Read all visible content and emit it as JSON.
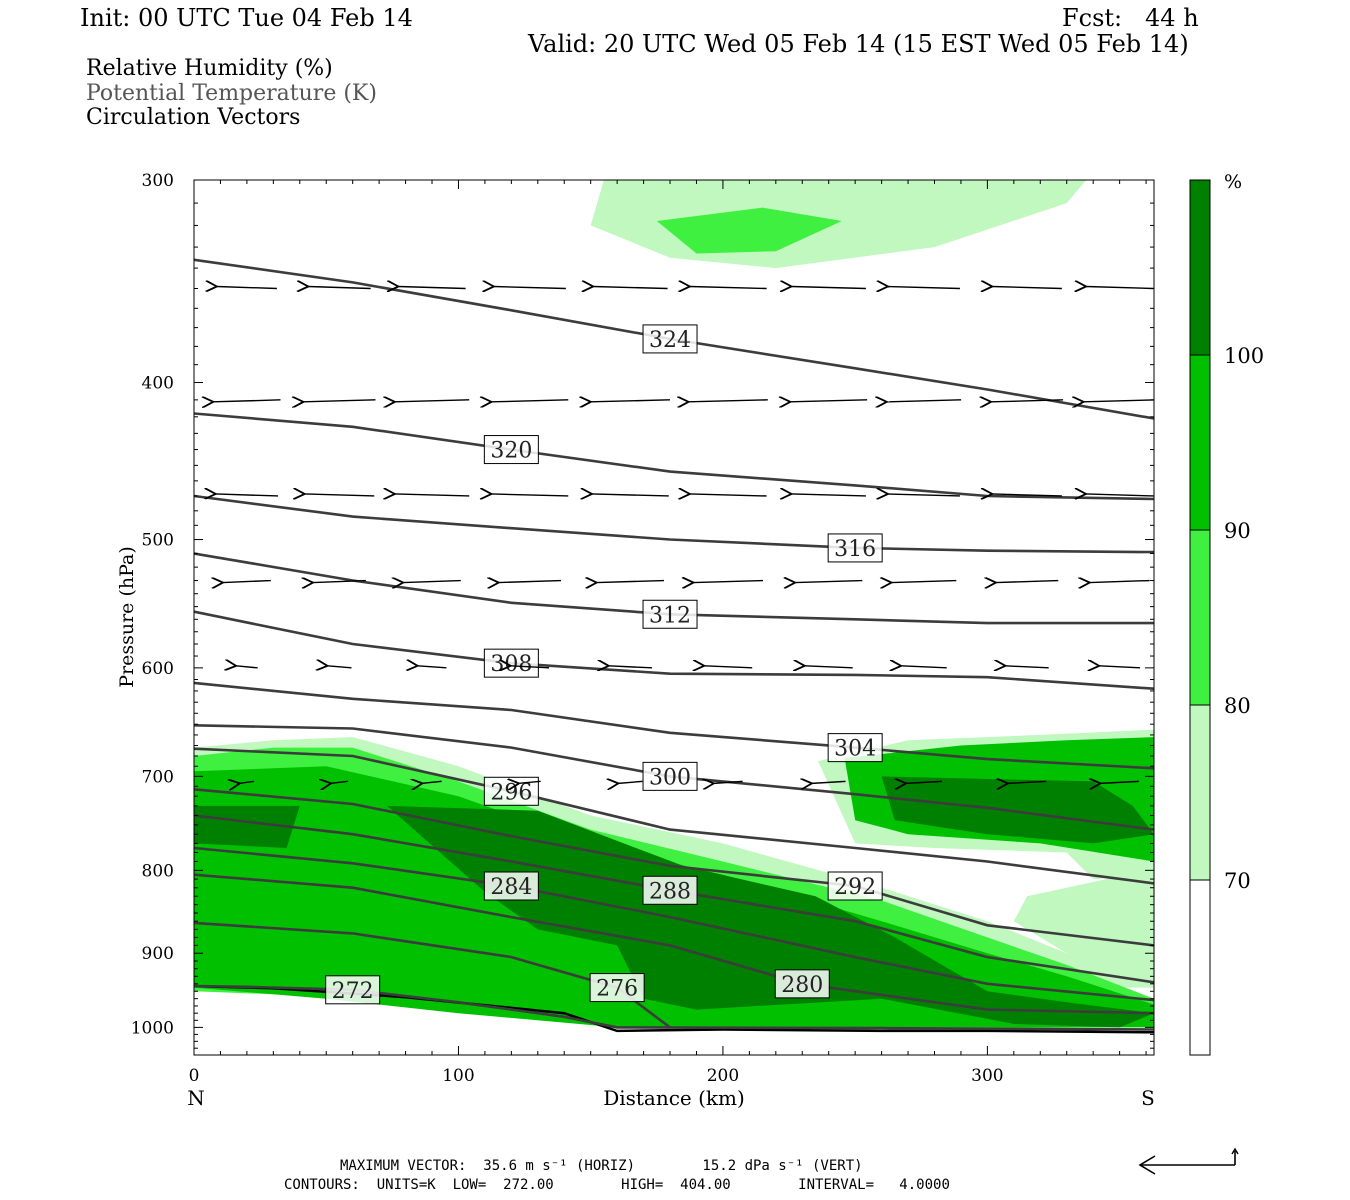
{
  "header": {
    "init": "Init: 00 UTC Tue 04 Feb 14",
    "fcst": "Fcst:   44 h",
    "valid": "Valid: 20 UTC Wed 05 Feb 14 (15 EST Wed 05 Feb 14)"
  },
  "legend": {
    "line1": "Relative Humidity (%)",
    "line2": "Potential Temperature (K)",
    "line3": "Circulation Vectors"
  },
  "footer": {
    "line1": "MAXIMUM VECTOR:  35.6 m s⁻¹ (HORIZ)        15.2 dPa s⁻¹ (VERT)",
    "line2": "CONTOURS:  UNITS=K  LOW=  272.00        HIGH=  404.00        INTERVAL=   4.0000"
  },
  "colors": {
    "rh70_80": "#c0f8c0",
    "rh80_90": "#40f040",
    "rh90_100": "#00c000",
    "rh100": "#008000",
    "contour": "#3c3c3c"
  },
  "chart_data": {
    "type": "cross-section",
    "xlabel": "Distance (km)",
    "ylabel": "Pressure (hPa)",
    "xlim": [
      0,
      363
    ],
    "ylim": [
      1040,
      300
    ],
    "y_log": true,
    "x_ticks": [
      "0",
      "100",
      "200",
      "300"
    ],
    "x_tick_values": [
      0,
      100,
      200,
      300
    ],
    "y_ticks": [
      "300",
      "400",
      "500",
      "600",
      "700",
      "800",
      "900",
      "1000"
    ],
    "y_tick_values": [
      300,
      400,
      500,
      600,
      700,
      800,
      900,
      1000
    ],
    "end_labels": {
      "left": "N",
      "right": "S"
    },
    "colorbar": {
      "unit": "%",
      "labels": [
        "100",
        "90",
        "80",
        "70"
      ],
      "label_values": [
        100,
        90,
        80,
        70
      ]
    },
    "theta_contours": [
      {
        "label": "272",
        "points": [
          [
            0,
            943
          ],
          [
            20,
            944
          ],
          [
            60,
            948
          ],
          [
            100,
            965
          ],
          [
            140,
            985
          ],
          [
            160,
            1000
          ],
          [
            260,
            1001
          ],
          [
            363,
            1003
          ]
        ]
      },
      {
        "label": "276",
        "points": [
          [
            0,
            862
          ],
          [
            60,
            875
          ],
          [
            120,
            905
          ],
          [
            160,
            945
          ],
          [
            180,
            1000
          ]
        ]
      },
      {
        "label": "280",
        "points": [
          [
            0,
            805
          ],
          [
            60,
            820
          ],
          [
            120,
            855
          ],
          [
            180,
            890
          ],
          [
            230,
            940
          ],
          [
            300,
            975
          ],
          [
            363,
            980
          ]
        ]
      },
      {
        "label": "284",
        "points": [
          [
            0,
            775
          ],
          [
            60,
            792
          ],
          [
            120,
            818
          ],
          [
            180,
            855
          ],
          [
            250,
            905
          ],
          [
            300,
            940
          ],
          [
            363,
            962
          ]
        ]
      },
      {
        "label": "288",
        "points": [
          [
            0,
            740
          ],
          [
            60,
            760
          ],
          [
            120,
            790
          ],
          [
            180,
            823
          ],
          [
            250,
            860
          ],
          [
            300,
            905
          ],
          [
            363,
            938
          ]
        ]
      },
      {
        "label": "292",
        "points": [
          [
            0,
            713
          ],
          [
            60,
            728
          ],
          [
            120,
            762
          ],
          [
            180,
            795
          ],
          [
            250,
            818
          ],
          [
            300,
            865
          ],
          [
            363,
            890
          ]
        ]
      },
      {
        "label": "296",
        "points": [
          [
            0,
            673
          ],
          [
            60,
            680
          ],
          [
            120,
            715
          ],
          [
            180,
            755
          ],
          [
            250,
            775
          ],
          [
            300,
            790
          ],
          [
            363,
            815
          ]
        ]
      },
      {
        "label": "300",
        "points": [
          [
            0,
            651
          ],
          [
            60,
            654
          ],
          [
            120,
            672
          ],
          [
            180,
            700
          ],
          [
            250,
            718
          ],
          [
            300,
            732
          ],
          [
            363,
            755
          ]
        ]
      },
      {
        "label": "304",
        "points": [
          [
            0,
            613
          ],
          [
            60,
            627
          ],
          [
            120,
            637
          ],
          [
            180,
            658
          ],
          [
            250,
            672
          ],
          [
            300,
            683
          ],
          [
            363,
            692
          ]
        ]
      },
      {
        "label": "308",
        "points": [
          [
            0,
            554
          ],
          [
            60,
            580
          ],
          [
            120,
            596
          ],
          [
            180,
            605
          ],
          [
            250,
            606
          ],
          [
            300,
            608
          ],
          [
            363,
            618
          ]
        ]
      },
      {
        "label": "312",
        "points": [
          [
            0,
            510
          ],
          [
            60,
            530
          ],
          [
            120,
            547
          ],
          [
            180,
            556
          ],
          [
            250,
            560
          ],
          [
            300,
            563
          ],
          [
            363,
            563
          ]
        ]
      },
      {
        "label": "316",
        "points": [
          [
            0,
            470
          ],
          [
            60,
            484
          ],
          [
            120,
            492
          ],
          [
            180,
            500
          ],
          [
            250,
            506
          ],
          [
            300,
            508
          ],
          [
            363,
            509
          ]
        ]
      },
      {
        "label": "320",
        "points": [
          [
            0,
            418
          ],
          [
            60,
            426
          ],
          [
            120,
            440
          ],
          [
            180,
            454
          ],
          [
            250,
            463
          ],
          [
            300,
            470
          ],
          [
            363,
            472
          ]
        ]
      },
      {
        "label": "324",
        "points": [
          [
            0,
            336
          ],
          [
            60,
            347
          ],
          [
            120,
            361
          ],
          [
            180,
            376
          ],
          [
            250,
            392
          ],
          [
            300,
            404
          ],
          [
            363,
            421
          ]
        ]
      }
    ],
    "rh_regions": [
      {
        "level": 70,
        "points": [
          [
            0,
            672
          ],
          [
            30,
            665
          ],
          [
            60,
            662
          ],
          [
            100,
            690
          ],
          [
            150,
            740
          ],
          [
            200,
            770
          ],
          [
            260,
            820
          ],
          [
            300,
            860
          ],
          [
            330,
            900
          ],
          [
            363,
            935
          ],
          [
            363,
            945
          ],
          [
            0,
            945
          ]
        ]
      },
      {
        "level": 80,
        "points": [
          [
            0,
            680
          ],
          [
            30,
            672
          ],
          [
            60,
            672
          ],
          [
            100,
            705
          ],
          [
            150,
            755
          ],
          [
            200,
            790
          ],
          [
            260,
            835
          ],
          [
            300,
            880
          ],
          [
            330,
            915
          ],
          [
            363,
            960
          ],
          [
            363,
            1000
          ],
          [
            0,
            950
          ]
        ]
      },
      {
        "level": 90,
        "points": [
          [
            0,
            695
          ],
          [
            50,
            690
          ],
          [
            100,
            720
          ],
          [
            150,
            770
          ],
          [
            200,
            805
          ],
          [
            260,
            860
          ],
          [
            300,
            900
          ],
          [
            330,
            930
          ],
          [
            363,
            968
          ],
          [
            363,
            1000
          ],
          [
            160,
            1000
          ],
          [
            100,
            980
          ],
          [
            50,
            960
          ],
          [
            0,
            945
          ]
        ]
      },
      {
        "level": 100,
        "points": [
          [
            0,
            730
          ],
          [
            40,
            730
          ],
          [
            35,
            775
          ],
          [
            0,
            770
          ]
        ]
      },
      {
        "level": 100,
        "points": [
          [
            73,
            730
          ],
          [
            130,
            735
          ],
          [
            185,
            795
          ],
          [
            235,
            830
          ],
          [
            265,
            880
          ],
          [
            300,
            950
          ],
          [
            330,
            965
          ],
          [
            363,
            980
          ],
          [
            350,
            1000
          ],
          [
            310,
            995
          ],
          [
            260,
            960
          ],
          [
            190,
            975
          ],
          [
            170,
            960
          ],
          [
            160,
            890
          ],
          [
            130,
            870
          ],
          [
            110,
            825
          ]
        ]
      },
      {
        "level": 70,
        "points": [
          [
            300,
            290
          ],
          [
            345,
            290
          ],
          [
            330,
            310
          ],
          [
            280,
            330
          ],
          [
            220,
            340
          ],
          [
            180,
            335
          ],
          [
            150,
            320
          ],
          [
            155,
            300
          ]
        ]
      },
      {
        "level": 80,
        "points": [
          [
            175,
            318
          ],
          [
            215,
            312
          ],
          [
            245,
            318
          ],
          [
            220,
            332
          ],
          [
            190,
            333
          ]
        ]
      },
      {
        "level": 70,
        "points": [
          [
            236,
            685
          ],
          [
            270,
            665
          ],
          [
            320,
            660
          ],
          [
            363,
            655
          ],
          [
            363,
            805
          ],
          [
            340,
            810
          ],
          [
            330,
            780
          ],
          [
            280,
            775
          ],
          [
            250,
            770
          ]
        ]
      },
      {
        "level": 90,
        "points": [
          [
            246,
            682
          ],
          [
            290,
            670
          ],
          [
            330,
            665
          ],
          [
            363,
            662
          ],
          [
            363,
            790
          ],
          [
            320,
            770
          ],
          [
            270,
            760
          ],
          [
            250,
            745
          ]
        ]
      },
      {
        "level": 100,
        "points": [
          [
            260,
            700
          ],
          [
            340,
            705
          ],
          [
            355,
            730
          ],
          [
            363,
            760
          ],
          [
            340,
            770
          ],
          [
            300,
            760
          ],
          [
            265,
            745
          ]
        ]
      },
      {
        "level": 70,
        "points": [
          [
            315,
            830
          ],
          [
            345,
            810
          ],
          [
            363,
            800
          ],
          [
            363,
            940
          ],
          [
            330,
            900
          ],
          [
            310,
            860
          ]
        ]
      }
    ],
    "terrain": [
      [
        0,
        943
      ],
      [
        30,
        946
      ],
      [
        80,
        958
      ],
      [
        140,
        980
      ],
      [
        160,
        1005
      ],
      [
        200,
        1003
      ],
      [
        260,
        1005
      ],
      [
        300,
        1005
      ],
      [
        363,
        1007
      ]
    ],
    "vectors": {
      "levels": [
        350,
        410,
        470,
        530,
        600,
        705
      ],
      "x": [
        20,
        55,
        90,
        127,
        165,
        202,
        240,
        276,
        315,
        350
      ],
      "horiz_ms": [
        [
          -25,
          -26,
          -28,
          -30,
          -31,
          -32,
          -31,
          -30,
          -29,
          -28
        ],
        [
          -28,
          -30,
          -31,
          -32,
          -33,
          -33,
          -32,
          -31,
          -30,
          -30
        ],
        [
          -26,
          -29,
          -31,
          -32,
          -32,
          -32,
          -31,
          -30,
          -29,
          -28
        ],
        [
          -20,
          -22,
          -24,
          -26,
          -28,
          -29,
          -28,
          -27,
          -26,
          -25
        ],
        [
          -9,
          -10,
          -12,
          -16,
          -18,
          -20,
          -20,
          -19,
          -18,
          -17
        ],
        [
          -6,
          -7,
          -8,
          -9,
          -10,
          -12,
          -14,
          -15,
          -16,
          -16
        ]
      ]
    }
  }
}
